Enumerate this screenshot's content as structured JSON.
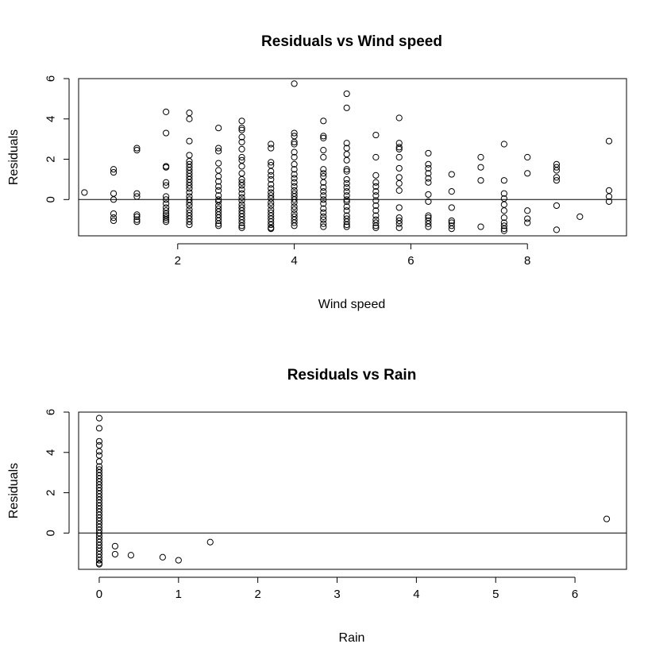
{
  "chart_data": [
    {
      "type": "scatter",
      "title": "Residuals vs Wind speed",
      "xlabel": "Wind speed",
      "ylabel": "Residuals",
      "xlim": [
        0.3,
        9.7
      ],
      "ylim": [
        -1.8,
        6.0
      ],
      "xticks": [
        2,
        4,
        6,
        8
      ],
      "yticks": [
        0,
        2,
        4,
        6
      ],
      "reference_line_y": 0,
      "grid": false,
      "series": [
        {
          "columns": [
            {
              "x": 0.4,
              "y": [
                0.35
              ]
            },
            {
              "x": 0.9,
              "y": [
                1.5,
                1.35,
                0.3,
                0.0,
                -0.7,
                -0.9,
                -1.05
              ]
            },
            {
              "x": 1.3,
              "y": [
                2.55,
                2.45,
                0.3,
                0.15,
                -0.75,
                -0.85,
                -1.0,
                -1.1
              ]
            },
            {
              "x": 1.8,
              "y": [
                4.35,
                3.3,
                1.65,
                1.6,
                0.85,
                0.7,
                0.15,
                0.0,
                -0.2,
                -0.4,
                -0.55,
                -0.7,
                -0.8,
                -0.9,
                -1.0,
                -1.1
              ]
            },
            {
              "x": 2.2,
              "y": [
                4.3,
                4.0,
                2.9,
                2.2,
                1.9,
                1.75,
                1.6,
                1.45,
                1.3,
                1.15,
                1.0,
                0.85,
                0.7,
                0.55,
                0.35,
                0.15,
                0.0,
                -0.15,
                -0.3,
                -0.5,
                -0.65,
                -0.8,
                -0.95,
                -1.1,
                -1.25
              ]
            },
            {
              "x": 2.7,
              "y": [
                3.55,
                2.55,
                2.4,
                1.8,
                1.45,
                1.15,
                0.9,
                0.65,
                0.45,
                0.2,
                0.0,
                -0.1,
                -0.3,
                -0.45,
                -0.6,
                -0.75,
                -0.9,
                -1.05,
                -1.2,
                -1.3
              ]
            },
            {
              "x": 3.1,
              "y": [
                3.9,
                3.55,
                3.45,
                3.1,
                2.85,
                2.5,
                2.1,
                1.95,
                1.65,
                1.3,
                1.0,
                0.85,
                0.7,
                0.5,
                0.3,
                0.1,
                -0.05,
                -0.25,
                -0.4,
                -0.55,
                -0.7,
                -0.85,
                -1.0,
                -1.15,
                -1.3,
                -1.4
              ]
            },
            {
              "x": 3.6,
              "y": [
                2.75,
                2.55,
                1.85,
                1.7,
                1.4,
                1.2,
                1.0,
                0.75,
                0.55,
                0.35,
                0.2,
                0.05,
                -0.15,
                -0.3,
                -0.5,
                -0.65,
                -0.8,
                -0.95,
                -1.1,
                -1.25,
                -1.4,
                -1.45
              ]
            },
            {
              "x": 4.0,
              "y": [
                5.75,
                3.3,
                3.15,
                2.85,
                2.75,
                2.35,
                2.1,
                1.75,
                1.5,
                1.25,
                1.05,
                0.85,
                0.65,
                0.45,
                0.3,
                0.15,
                0.0,
                -0.15,
                -0.35,
                -0.5,
                -0.7,
                -0.85,
                -1.0,
                -1.15,
                -1.3
              ]
            },
            {
              "x": 4.5,
              "y": [
                3.9,
                3.15,
                3.05,
                2.45,
                2.1,
                1.5,
                1.3,
                1.15,
                0.85,
                0.6,
                0.4,
                0.2,
                0.0,
                -0.2,
                -0.45,
                -0.65,
                -0.85,
                -1.0,
                -1.2,
                -1.35
              ]
            },
            {
              "x": 4.9,
              "y": [
                5.25,
                4.55,
                2.8,
                2.55,
                2.25,
                1.95,
                1.5,
                1.4,
                1.0,
                0.8,
                0.6,
                0.4,
                0.2,
                0.0,
                -0.1,
                -0.35,
                -0.55,
                -0.8,
                -0.95,
                -1.1,
                -1.25,
                -1.35
              ]
            },
            {
              "x": 5.4,
              "y": [
                3.2,
                2.1,
                1.2,
                0.85,
                0.65,
                0.4,
                0.2,
                -0.05,
                -0.3,
                -0.55,
                -0.8,
                -1.0,
                -1.15,
                -1.3,
                -1.4
              ]
            },
            {
              "x": 5.8,
              "y": [
                4.05,
                2.8,
                2.6,
                2.5,
                2.1,
                1.55,
                1.1,
                0.8,
                0.45,
                -0.4,
                -0.9,
                -1.05,
                -1.2,
                -1.4
              ]
            },
            {
              "x": 6.3,
              "y": [
                2.3,
                1.75,
                1.55,
                1.3,
                1.05,
                0.85,
                0.25,
                -0.1,
                -0.8,
                -0.9,
                -1.05,
                -1.2,
                -1.35
              ]
            },
            {
              "x": 6.7,
              "y": [
                1.25,
                0.4,
                -0.4,
                -1.05,
                -1.15,
                -1.3,
                -1.45
              ]
            },
            {
              "x": 7.2,
              "y": [
                2.1,
                1.6,
                0.95,
                -1.35
              ]
            },
            {
              "x": 7.6,
              "y": [
                2.75,
                0.95,
                0.3,
                0.05,
                -0.25,
                -0.55,
                -0.9,
                -1.15,
                -1.3,
                -1.45,
                -1.55
              ]
            },
            {
              "x": 8.0,
              "y": [
                2.1,
                1.3,
                -0.55,
                -0.95,
                -1.15
              ]
            },
            {
              "x": 8.5,
              "y": [
                1.75,
                1.6,
                1.45,
                1.1,
                0.95,
                -0.3,
                -1.5
              ]
            },
            {
              "x": 8.9,
              "y": [
                -0.85
              ]
            },
            {
              "x": 9.4,
              "y": [
                2.9,
                0.45,
                0.15,
                -0.1
              ]
            }
          ]
        }
      ]
    },
    {
      "type": "scatter",
      "title": "Residuals vs Rain",
      "xlabel": "Rain",
      "ylabel": "Residuals",
      "xlim": [
        -0.26,
        6.65
      ],
      "ylim": [
        -1.8,
        6.0
      ],
      "xticks": [
        0,
        1,
        2,
        3,
        4,
        5,
        6
      ],
      "yticks": [
        0,
        2,
        4,
        6
      ],
      "reference_line_y": 0,
      "grid": false,
      "series": [
        {
          "columns": [
            {
              "x": 0.0,
              "y": [
                5.7,
                5.2,
                4.55,
                4.35,
                4.05,
                3.85,
                3.55,
                3.3,
                3.15,
                3.0,
                2.85,
                2.7,
                2.55,
                2.4,
                2.25,
                2.1,
                1.95,
                1.8,
                1.65,
                1.5,
                1.35,
                1.2,
                1.05,
                0.9,
                0.75,
                0.6,
                0.45,
                0.3,
                0.15,
                0.0,
                -0.15,
                -0.3,
                -0.45,
                -0.6,
                -0.75,
                -0.9,
                -1.05,
                -1.2,
                -1.35,
                -1.5,
                -1.55
              ]
            },
            {
              "x": 0.2,
              "y": [
                -0.65,
                -1.05
              ]
            },
            {
              "x": 0.4,
              "y": [
                -1.1
              ]
            },
            {
              "x": 0.8,
              "y": [
                -1.2
              ]
            },
            {
              "x": 1.0,
              "y": [
                -1.35
              ]
            },
            {
              "x": 1.4,
              "y": [
                -0.45
              ]
            },
            {
              "x": 6.4,
              "y": [
                0.7
              ]
            }
          ]
        }
      ]
    }
  ]
}
